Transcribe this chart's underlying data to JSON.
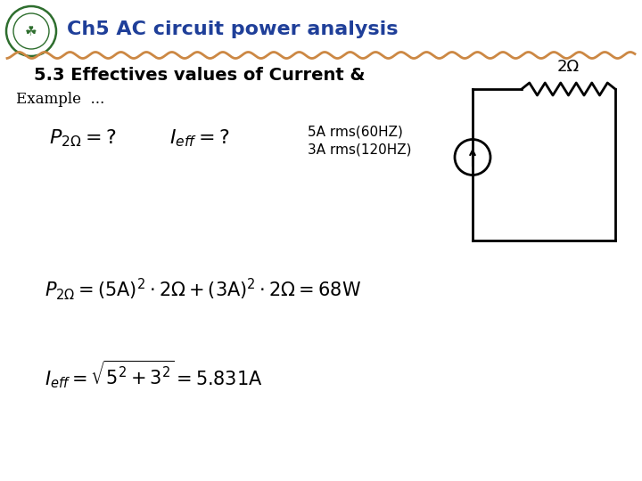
{
  "title": "Ch5 AC circuit power analysis",
  "title_color": "#1F3F99",
  "subtitle": "5.3 Effectives values of Current &",
  "bg_color": "#FFFFFF",
  "wavy_line_color": "#CC8844",
  "example_text": "Example  ...",
  "label1": "5A rms(60HZ)",
  "label2": "3A rms(120HZ)",
  "resistor_label": "2Ω",
  "font_size_title": 16,
  "font_size_subtitle": 14,
  "font_size_body": 12,
  "font_size_eq": 15,
  "font_size_small": 11
}
